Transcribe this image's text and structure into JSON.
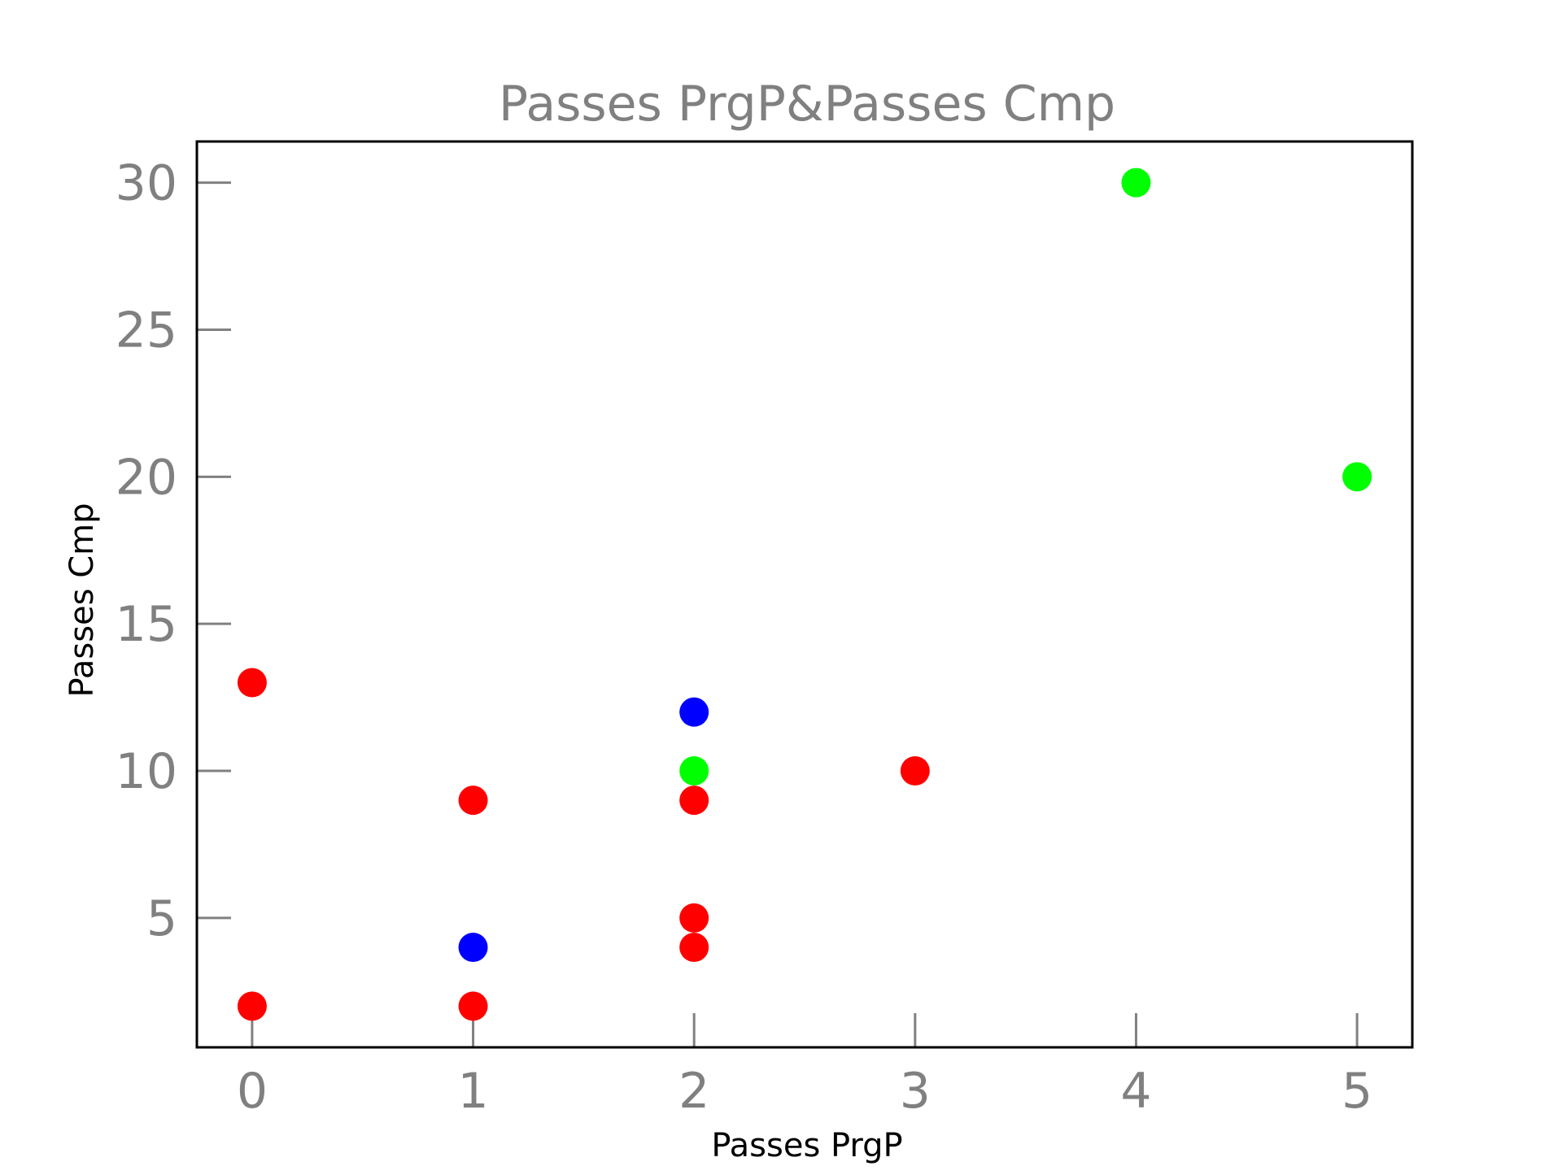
{
  "chart_data": {
    "type": "scatter",
    "title": "Passes PrgP&Passes Cmp",
    "xlabel": "Passes PrgP",
    "ylabel": "Passes Cmp",
    "xlim": [
      -0.25,
      5.25
    ],
    "ylim": [
      0.6,
      31.4
    ],
    "xticks": [
      0,
      1,
      2,
      3,
      4,
      5
    ],
    "xtick_labels": [
      "0",
      "1",
      "2",
      "3",
      "4",
      "5"
    ],
    "yticks": [
      5,
      10,
      15,
      20,
      25,
      30
    ],
    "ytick_labels": [
      "5",
      "10",
      "15",
      "20",
      "25",
      "30"
    ],
    "grid": false,
    "legend": "none",
    "colors": {
      "red": "#ff0000",
      "blue": "#0000ff",
      "green": "#00ff00",
      "tick_text": "#808080",
      "frame": "#000000"
    },
    "points": [
      {
        "x": 0,
        "y": 13,
        "color": "#ff0000"
      },
      {
        "x": 0,
        "y": 2,
        "color": "#ff0000"
      },
      {
        "x": 1,
        "y": 9,
        "color": "#ff0000"
      },
      {
        "x": 1,
        "y": 4,
        "color": "#0000ff"
      },
      {
        "x": 1,
        "y": 2,
        "color": "#ff0000"
      },
      {
        "x": 2,
        "y": 12,
        "color": "#0000ff"
      },
      {
        "x": 2,
        "y": 10,
        "color": "#00ff00"
      },
      {
        "x": 2,
        "y": 9,
        "color": "#ff0000"
      },
      {
        "x": 2,
        "y": 5,
        "color": "#ff0000"
      },
      {
        "x": 2,
        "y": 4,
        "color": "#ff0000"
      },
      {
        "x": 3,
        "y": 10,
        "color": "#ff0000"
      },
      {
        "x": 4,
        "y": 30,
        "color": "#00ff00"
      },
      {
        "x": 5,
        "y": 20,
        "color": "#00ff00"
      }
    ]
  }
}
